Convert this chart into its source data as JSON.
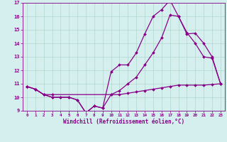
{
  "title": "",
  "xlabel": "Windchill (Refroidissement éolien,°C)",
  "ylabel": "",
  "xlim": [
    -0.5,
    23.5
  ],
  "ylim": [
    9,
    17
  ],
  "yticks": [
    9,
    10,
    11,
    12,
    13,
    14,
    15,
    16,
    17
  ],
  "xticks": [
    0,
    1,
    2,
    3,
    4,
    5,
    6,
    7,
    8,
    9,
    10,
    11,
    12,
    13,
    14,
    15,
    16,
    17,
    18,
    19,
    20,
    21,
    22,
    23
  ],
  "bg_color": "#d5efef",
  "grid_color": "#b0d8cc",
  "line_color": "#880088",
  "line1_x": [
    0,
    1,
    2,
    3,
    4,
    5,
    6,
    7,
    8,
    9,
    10,
    11,
    12,
    13,
    14,
    15,
    16,
    17,
    18,
    19,
    20,
    21,
    22,
    23
  ],
  "line1_y": [
    10.8,
    10.6,
    10.2,
    10.0,
    10.0,
    10.0,
    9.8,
    8.85,
    9.35,
    9.2,
    10.2,
    10.2,
    10.3,
    10.4,
    10.5,
    10.6,
    10.7,
    10.8,
    10.9,
    10.9,
    10.9,
    10.9,
    10.95,
    11.0
  ],
  "line2_x": [
    0,
    1,
    2,
    3,
    4,
    5,
    6,
    7,
    8,
    9,
    10,
    11,
    12,
    13,
    14,
    15,
    16,
    17,
    18,
    19,
    20,
    21,
    22,
    23
  ],
  "line2_y": [
    10.8,
    10.6,
    10.2,
    10.0,
    10.0,
    10.0,
    9.8,
    8.85,
    9.35,
    9.2,
    11.9,
    12.4,
    12.4,
    13.3,
    14.7,
    16.0,
    16.5,
    17.2,
    16.0,
    14.8,
    14.0,
    13.0,
    12.9,
    11.0
  ],
  "line3_x": [
    0,
    1,
    2,
    3,
    10,
    11,
    12,
    13,
    14,
    15,
    16,
    17,
    18,
    19,
    20,
    21,
    22,
    23
  ],
  "line3_y": [
    10.8,
    10.6,
    10.2,
    10.2,
    10.2,
    10.5,
    11.0,
    11.5,
    12.4,
    13.3,
    14.4,
    16.1,
    16.0,
    14.7,
    14.75,
    14.0,
    13.0,
    11.0
  ]
}
